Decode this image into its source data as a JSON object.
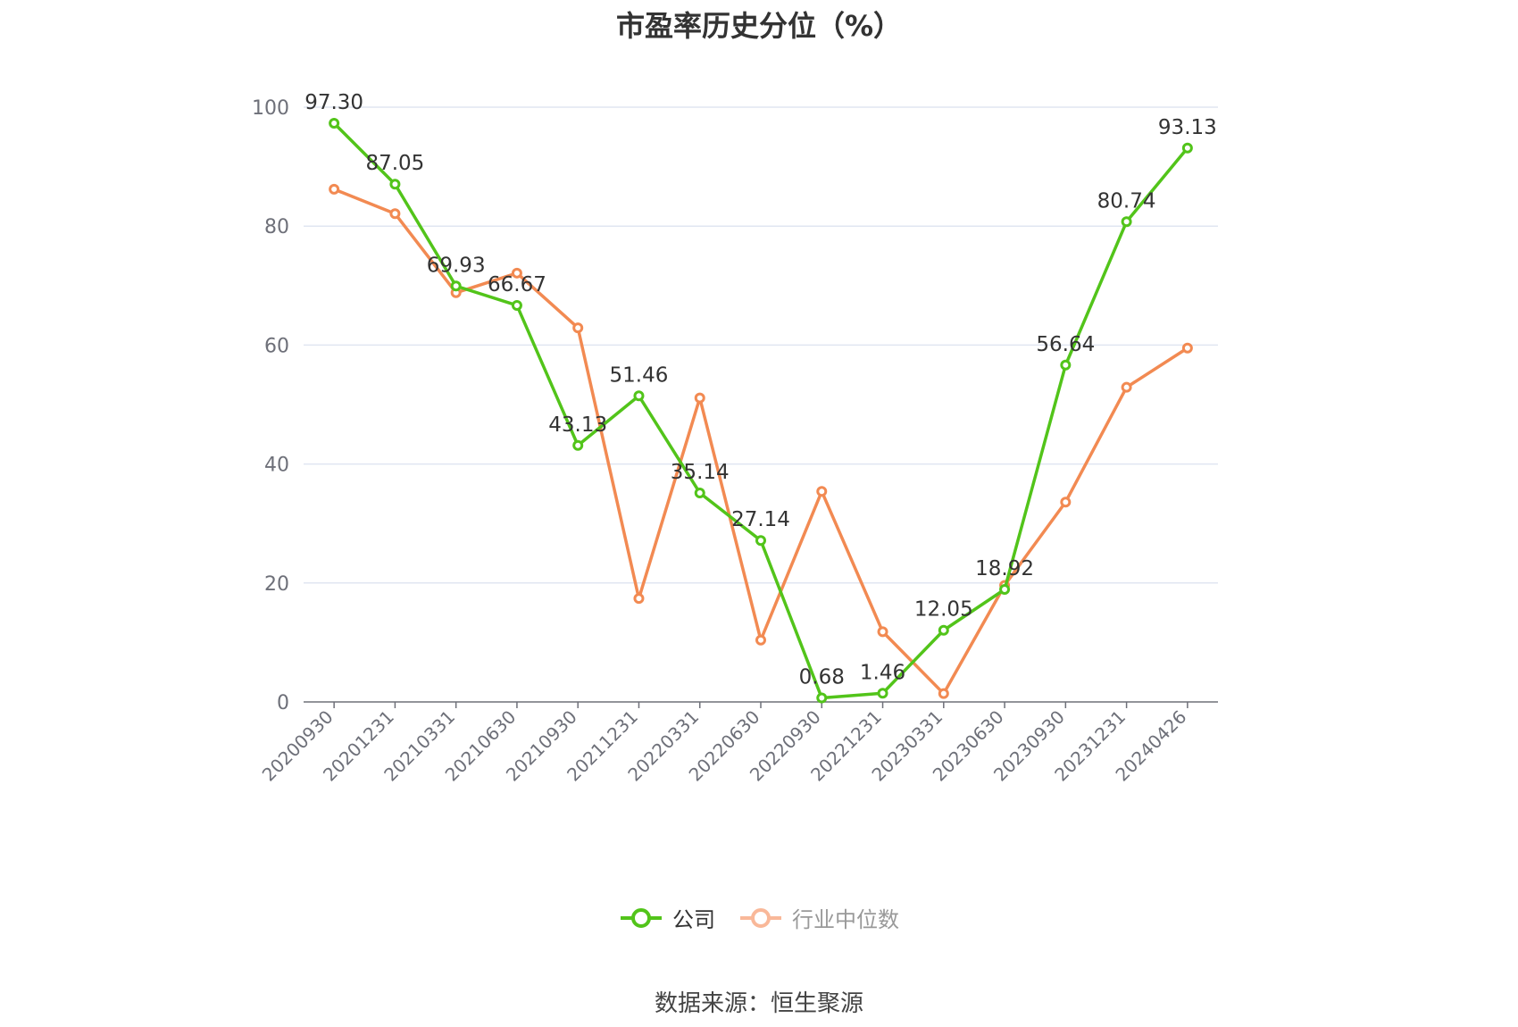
{
  "title": "市盈率历史分位（%）",
  "source": "数据来源：恒生聚源",
  "chart_data": {
    "type": "line",
    "categories": [
      "20200930",
      "20201231",
      "20210331",
      "20210630",
      "20210930",
      "20211231",
      "20220331",
      "20220630",
      "20220930",
      "20221231",
      "20230331",
      "20230630",
      "20230930",
      "20231231",
      "20240426"
    ],
    "ylim": [
      0,
      100
    ],
    "yticks": [
      0,
      20,
      40,
      60,
      80,
      100
    ],
    "grid": true,
    "legend_position": "bottom",
    "series": [
      {
        "name": "公司",
        "color": "#52c41a",
        "show_labels": true,
        "values": [
          97.3,
          87.05,
          69.93,
          66.67,
          43.13,
          51.46,
          35.14,
          27.14,
          0.68,
          1.46,
          12.05,
          18.92,
          56.64,
          80.74,
          93.13
        ],
        "labels": [
          "97.30",
          "87.05",
          "69.93",
          "66.67",
          "43.13",
          "51.46",
          "35.14",
          "27.14",
          "0.68",
          "1.46",
          "12.05",
          "18.92",
          "56.64",
          "80.74",
          "93.13"
        ]
      },
      {
        "name": "行业中位数",
        "color": "#f28a52",
        "show_labels": false,
        "values": [
          86.2,
          82.1,
          68.8,
          72.1,
          62.9,
          17.4,
          51.1,
          10.4,
          35.4,
          11.8,
          1.4,
          19.6,
          33.6,
          52.9,
          59.5
        ]
      }
    ]
  },
  "legend": {
    "items": [
      {
        "label": "公司",
        "color": "#52c41a"
      },
      {
        "label": "行业中位数",
        "color": "#f9b899"
      }
    ]
  }
}
